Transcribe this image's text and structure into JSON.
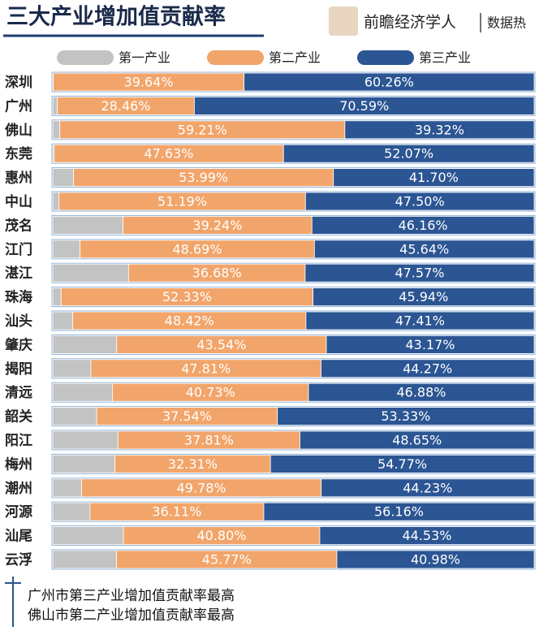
{
  "chart_data": {
    "type": "stacked-bar-horizontal",
    "title": "三大产业增加值贡献率",
    "brand": "前瞻经济学人",
    "source": "数据热",
    "categories": [
      "深圳",
      "广州",
      "佛山",
      "东莞",
      "惠州",
      "中山",
      "茂名",
      "江门",
      "湛江",
      "珠海",
      "汕头",
      "肇庆",
      "揭阳",
      "清远",
      "韶关",
      "阳江",
      "梅州",
      "潮州",
      "河源",
      "汕尾",
      "云浮"
    ],
    "xlim": [
      0,
      100
    ],
    "series": [
      {
        "name": "第一产业",
        "color": "#c3c3c3",
        "values": [
          0.1,
          0.95,
          1.47,
          0.3,
          4.31,
          1.31,
          14.6,
          5.67,
          15.75,
          1.73,
          4.17,
          13.29,
          7.92,
          12.39,
          9.13,
          13.54,
          12.92,
          5.99,
          7.73,
          14.67,
          13.25
        ]
      },
      {
        "name": "第二产业",
        "color": "#f2a56a",
        "values": [
          39.64,
          28.46,
          59.21,
          47.63,
          53.99,
          51.19,
          39.24,
          48.69,
          36.68,
          52.33,
          48.42,
          43.54,
          47.81,
          40.73,
          37.54,
          37.81,
          32.31,
          49.78,
          36.11,
          40.8,
          45.77
        ],
        "value_labels": [
          "39.64%",
          "28.46%",
          "59.21%",
          "47.63%",
          "53.99%",
          "51.19%",
          "39.24%",
          "48.69%",
          "36.68%",
          "52.33%",
          "48.42%",
          "43.54%",
          "47.81%",
          "40.73%",
          "37.54%",
          "37.81%",
          "32.31%",
          "49.78%",
          "36.11%",
          "40.80%",
          "45.77%"
        ]
      },
      {
        "name": "第三产业",
        "color": "#2b5593",
        "values": [
          60.26,
          70.59,
          39.32,
          52.07,
          41.7,
          47.5,
          46.16,
          45.64,
          47.57,
          45.94,
          47.41,
          43.17,
          44.27,
          46.88,
          53.33,
          48.65,
          54.77,
          44.23,
          56.16,
          44.53,
          40.98
        ],
        "value_labels": [
          "60.26%",
          "70.59%",
          "39.32%",
          "52.07%",
          "41.70%",
          "47.50%",
          "46.16%",
          "45.64%",
          "47.57%",
          "45.94%",
          "47.41%",
          "43.17%",
          "44.27%",
          "46.88%",
          "53.33%",
          "48.65%",
          "54.77%",
          "44.23%",
          "56.16%",
          "44.53%",
          "40.98%"
        ]
      }
    ],
    "notes": [
      "广州市第三产业增加值贡献率最高",
      "佛山市第二产业增加值贡献率最高"
    ]
  }
}
